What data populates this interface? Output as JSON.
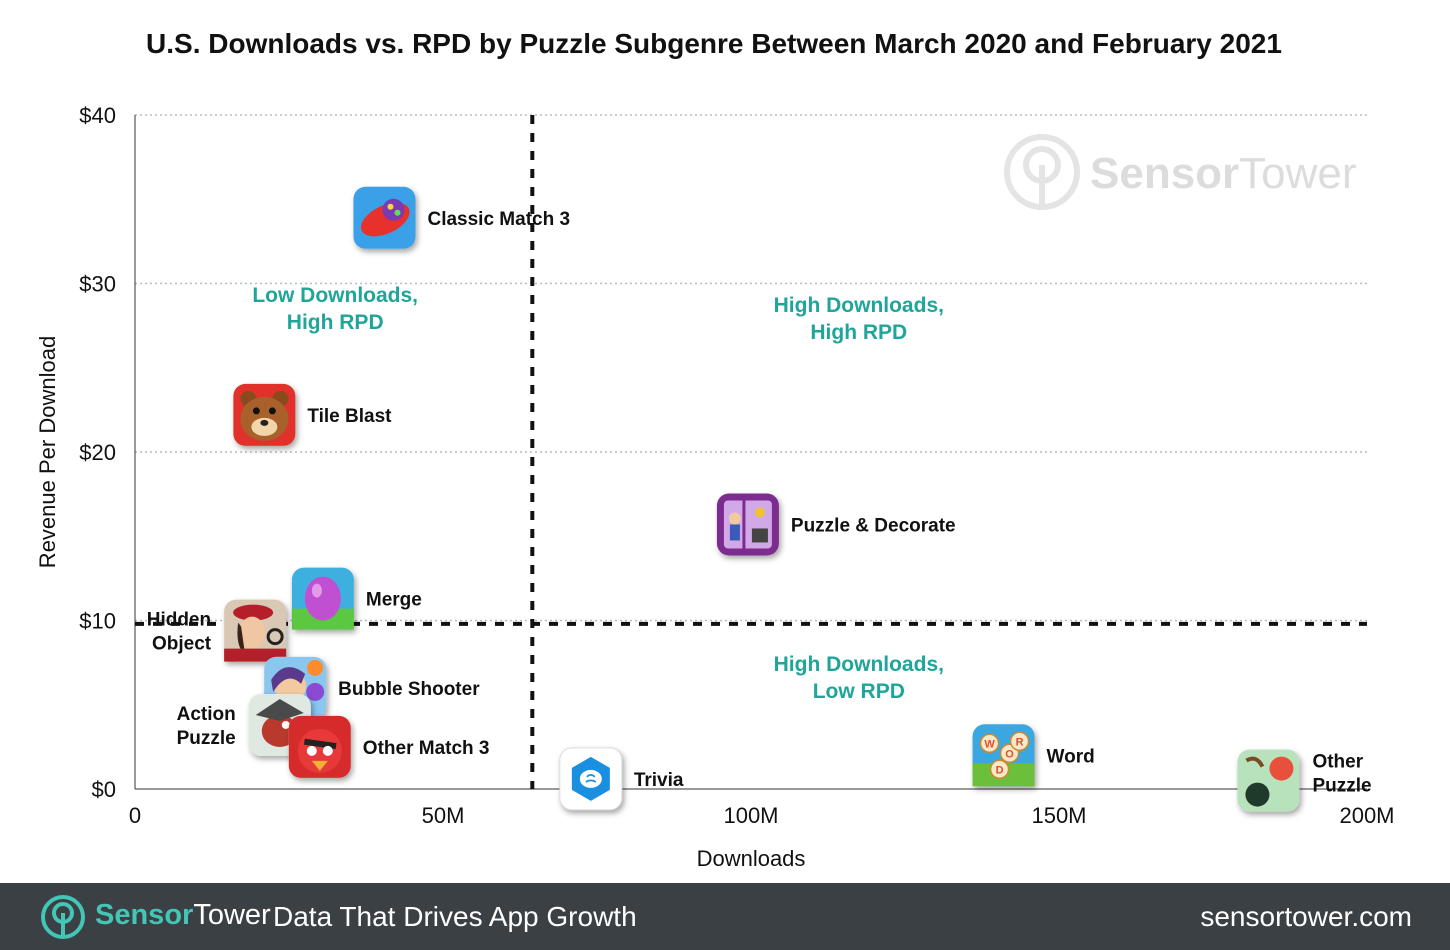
{
  "chart_data": {
    "type": "scatter",
    "title": "U.S. Downloads vs. RPD by Puzzle Subgenre Between March 2020 and February 2021",
    "xlabel": "Downloads",
    "ylabel": "Revenue Per Download",
    "xlim": [
      0,
      200
    ],
    "ylim": [
      0,
      40
    ],
    "x_ticks": [
      {
        "value": 0,
        "label": "0"
      },
      {
        "value": 50,
        "label": "50M"
      },
      {
        "value": 100,
        "label": "100M"
      },
      {
        "value": 150,
        "label": "150M"
      },
      {
        "value": 200,
        "label": "200M"
      }
    ],
    "y_ticks": [
      {
        "value": 0,
        "label": "$0"
      },
      {
        "value": 10,
        "label": "$10"
      },
      {
        "value": 20,
        "label": "$20"
      },
      {
        "value": 30,
        "label": "$30"
      },
      {
        "value": 40,
        "label": "$40"
      }
    ],
    "grid": true,
    "quadrant_divider": {
      "x": 64.5,
      "y": 9.8
    },
    "quadrant_labels": [
      {
        "lines": [
          "Low Downloads,",
          "High RPD"
        ],
        "x": 32.5,
        "y": 28.9
      },
      {
        "lines": [
          "High Downloads,",
          "High RPD"
        ],
        "x": 117.5,
        "y": 28.3
      },
      {
        "lines": [
          "High Downloads,",
          "Low RPD"
        ],
        "x": 117.5,
        "y": 7.0
      }
    ],
    "points": [
      {
        "name": "Classic Match 3",
        "x": 40.5,
        "y": 33.9,
        "icon": "candy-icon",
        "label_side": "right"
      },
      {
        "name": "Tile Blast",
        "x": 21,
        "y": 22.2,
        "icon": "bear-icon",
        "label_side": "right"
      },
      {
        "name": "Puzzle & Decorate",
        "x": 99.5,
        "y": 15.7,
        "icon": "house-icon",
        "label_side": "right"
      },
      {
        "name": "Merge",
        "x": 30.5,
        "y": 11.3,
        "icon": "egg-icon",
        "label_side": "right"
      },
      {
        "name": "Hidden Object",
        "x": 19.5,
        "y": 9.4,
        "icon": "detective-icon",
        "label_side": "left"
      },
      {
        "name": "Bubble Shooter",
        "x": 26,
        "y": 6.0,
        "icon": "bubble-icon",
        "label_side": "right"
      },
      {
        "name": "Action Puzzle",
        "x": 23.5,
        "y": 3.8,
        "icon": "bird-icon",
        "label_side": "left"
      },
      {
        "name": "Other Match 3",
        "x": 30,
        "y": 2.5,
        "icon": "angry-bird-icon",
        "label_side": "right"
      },
      {
        "name": "Trivia",
        "x": 74,
        "y": 0.6,
        "icon": "chat-brain-icon",
        "label_side": "right"
      },
      {
        "name": "Word",
        "x": 141,
        "y": 2.0,
        "icon": "word-tiles-icon",
        "label_side": "right"
      },
      {
        "name": "Other Puzzle",
        "x": 184,
        "y": 0.5,
        "icon": "dots-icon",
        "label_side": "right"
      }
    ],
    "colors": {
      "quadrant_label": "#1fa59a",
      "divider": "#111111",
      "grid": "#bbbbbb"
    }
  },
  "watermark": {
    "text_sensor": "Sensor",
    "text_tower": "Tower"
  },
  "footer": {
    "brand_sensor": "Sensor",
    "brand_tower": "Tower",
    "tagline": "Data That Drives App Growth",
    "url": "sensortower.com"
  }
}
